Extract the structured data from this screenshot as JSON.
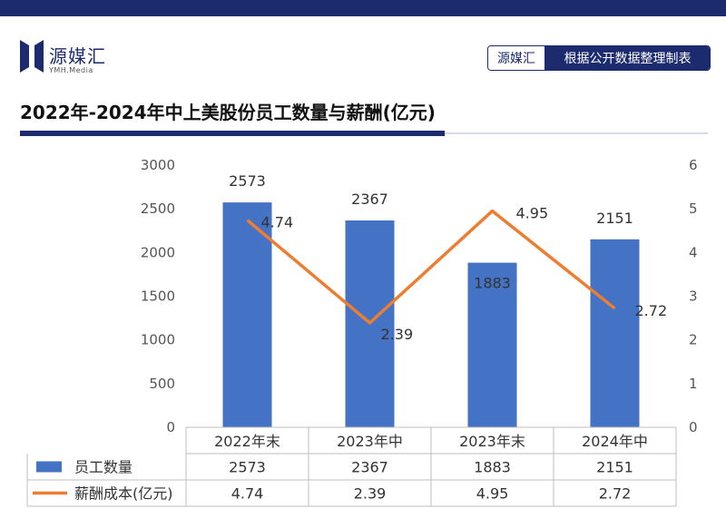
{
  "header": {
    "logo_text": "源媒汇",
    "logo_sub": "YMH.Media",
    "source_tag": "源媒汇",
    "source_note": "根据公开数据整理制表"
  },
  "title": "2022年-2024年中上美股份员工数量与薪酬(亿元)",
  "colors": {
    "bar": "#4472c4",
    "line": "#ed7d31",
    "brand": "#1c2a6e"
  },
  "chart_data": {
    "type": "bar",
    "categories": [
      "2022年末",
      "2023年中",
      "2023年末",
      "2024年中"
    ],
    "series": [
      {
        "name": "员工数量",
        "type": "bar",
        "axis": "left",
        "values": [
          2573,
          2367,
          1883,
          2151
        ]
      },
      {
        "name": "薪酬成本(亿元)",
        "type": "line",
        "axis": "right",
        "values": [
          4.74,
          2.39,
          4.95,
          2.72
        ]
      }
    ],
    "y_left": {
      "min": 0,
      "max": 3000,
      "ticks": [
        0,
        500,
        1000,
        1500,
        2000,
        2500,
        3000
      ]
    },
    "y_right": {
      "min": 0,
      "max": 6,
      "ticks": [
        0,
        1,
        2,
        3,
        4,
        5,
        6
      ]
    },
    "data_table": true,
    "grid": false
  }
}
